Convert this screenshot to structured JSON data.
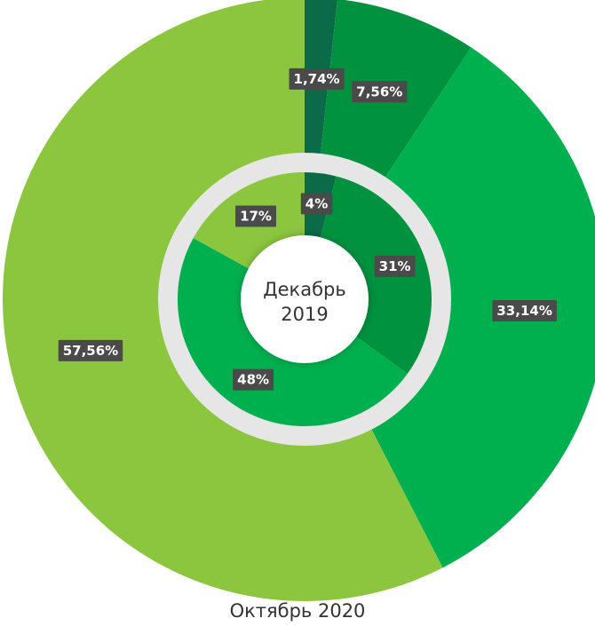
{
  "chart_data": [
    {
      "type": "donut",
      "title": "Октябрь 2020",
      "values": [
        1.74,
        7.56,
        33.14,
        57.56
      ],
      "value_labels": [
        "1,74%",
        "7,56%",
        "33,14%",
        "57,56%"
      ],
      "colors": [
        "#0b6b48",
        "#00923f",
        "#00b04f",
        "#8cc63f"
      ]
    },
    {
      "type": "donut",
      "title": "Декабрь 2019",
      "values": [
        4,
        31,
        48,
        17
      ],
      "value_labels": [
        "4%",
        "31%",
        "48%",
        "17%"
      ],
      "colors": [
        "#0b6b48",
        "#00923f",
        "#00b04f",
        "#8cc63f"
      ]
    }
  ]
}
